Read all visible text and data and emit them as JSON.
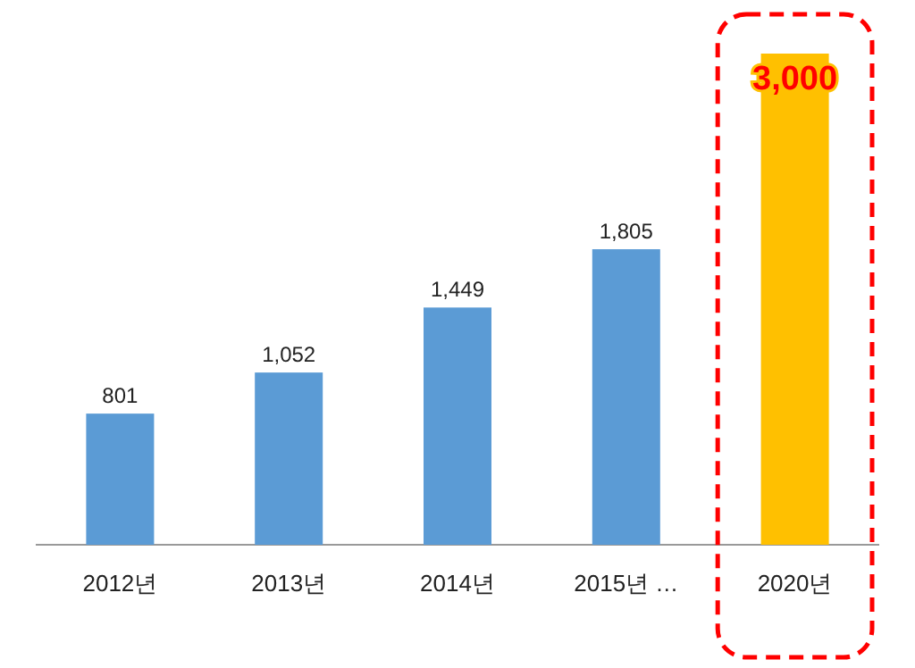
{
  "chart_data": {
    "type": "bar",
    "categories": [
      "2012년",
      "2013년",
      "2014년",
      "2015년 …",
      "2020년"
    ],
    "values": [
      801,
      1052,
      1449,
      1805,
      3000
    ],
    "value_labels": [
      "801",
      "1,052",
      "1,449",
      "1,805",
      "3,000"
    ],
    "colors": [
      "#5b9bd5",
      "#5b9bd5",
      "#5b9bd5",
      "#5b9bd5",
      "#ffc000"
    ]
  }
}
